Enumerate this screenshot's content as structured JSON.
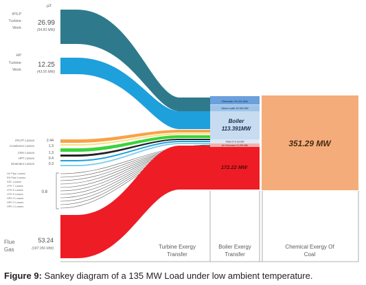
{
  "corner_unit": "µ/t",
  "left_labels": {
    "ip_lp_turbine": {
      "lines": [
        "IP/LP",
        "Turbine",
        "Work"
      ],
      "value": "26.99",
      "sub": "(94.83 MW)"
    },
    "hp_turbine": {
      "lines": [
        "HP",
        "Turbine",
        "Work"
      ],
      "value": "12.25",
      "sub": "(43.05 MW)"
    },
    "losses": [
      {
        "label": "IP/LPT Losses",
        "value": "2.44"
      },
      {
        "label": "Condenser Losses",
        "value": "1.3"
      },
      {
        "label": "CRH Losses",
        "value": "1.3"
      },
      {
        "label": "HPT Losses",
        "value": "0.4"
      },
      {
        "label": "Deaerator Losses",
        "value": "0.3"
      }
    ],
    "small_losses": [
      "HX Pipe Losses",
      "RH Pipe Losses",
      "SSC Losses",
      "LPH 7 Losses",
      "LPH 6 Losses",
      "LPH 5 Losses",
      "HPH 3 Losses",
      "HPH 2 Losses",
      "HPH 1 Losses"
    ],
    "small_losses_value": "0.8",
    "flue_gas": {
      "lines": [
        "Flue",
        "Gas"
      ],
      "value": "53.24",
      "sub": "(187.056 MW)"
    }
  },
  "boiler": {
    "reheater": "Reheater  26.016  MW",
    "steam_line": "Steam outlet  18.365 MW",
    "title_lines": [
      "Boiler",
      "113.391MW"
    ],
    "feed_line": "Feed  27.5 33.200",
    "preheater_line": "Air Preheater  10.256 MW",
    "flue_value": "172.22 MW"
  },
  "coal_value": "351.29 MW",
  "column_labels": [
    {
      "lines": [
        "Turbine Exergy",
        "Transfer"
      ]
    },
    {
      "lines": [
        "Boiler Exergy",
        "Transfer"
      ]
    },
    {
      "lines": [
        "Chemical Exergy Of",
        "Coal"
      ]
    }
  ],
  "caption": {
    "prefix": "Figure 9:",
    "text": " Sankey diagram of a 135 MW Load under low ambient temperature."
  },
  "colors": {
    "ip_lp_band": "#2e7a8c",
    "hp_band": "#1ea0dc",
    "flue_band": "#ee1c25",
    "coal": "#f4ad7a",
    "boiler_light": "#c7dcf0",
    "boiler_blue": "#6aa0dc",
    "green_band": "#3cd23c",
    "orange_band": "#f7a24a"
  }
}
